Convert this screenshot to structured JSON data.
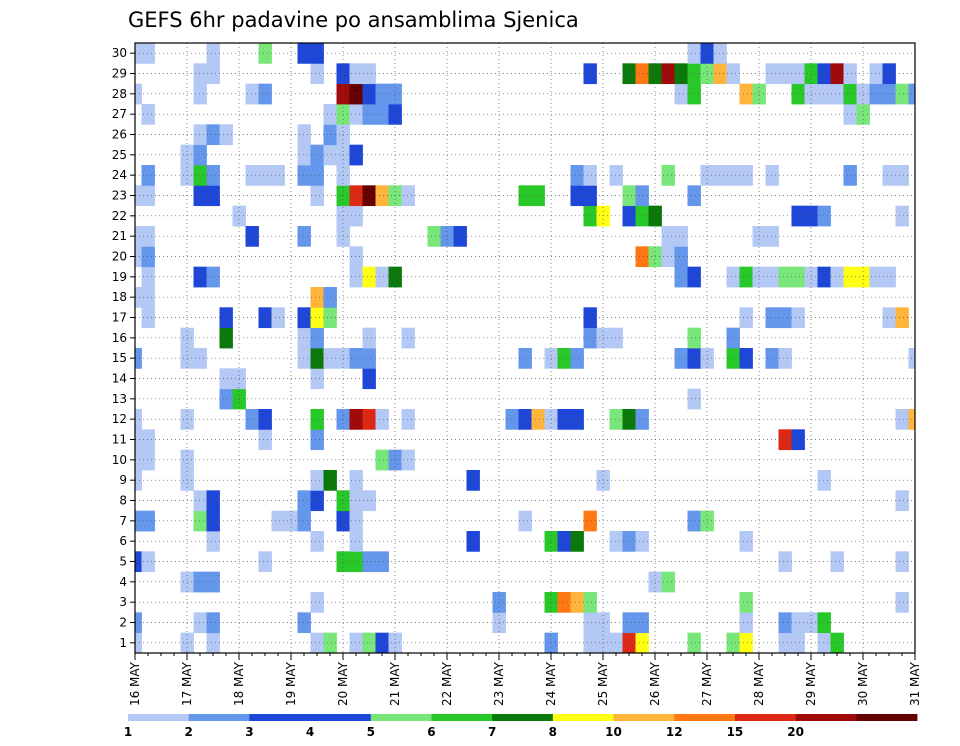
{
  "chart_data": {
    "type": "heatmap",
    "title": "GEFS 6hr padavine po ansamblima Sjenica",
    "xlabel": "",
    "ylabel": "",
    "x_ticks": [
      "16 MAY",
      "17 MAY",
      "18 MAY",
      "19 MAY",
      "20 MAY",
      "21 MAY",
      "22 MAY",
      "23 MAY",
      "24 MAY",
      "25 MAY",
      "26 MAY",
      "27 MAY",
      "28 MAY",
      "29 MAY",
      "30 MAY",
      "31 MAY"
    ],
    "x_steps_per_day": 4,
    "n_steps": 60,
    "members": 30,
    "y_ticks": [
      1,
      2,
      3,
      4,
      5,
      6,
      7,
      8,
      9,
      10,
      11,
      12,
      13,
      14,
      15,
      16,
      17,
      18,
      19,
      20,
      21,
      22,
      23,
      24,
      25,
      26,
      27,
      28,
      29,
      30
    ],
    "grid": true,
    "colorbar": {
      "ticks": [
        "1",
        "2",
        "3",
        "4",
        "5",
        "6",
        "7",
        "8",
        "10",
        "12",
        "15",
        "20"
      ],
      "colors": [
        "#b4c8f5",
        "#6496eb",
        "#1e46d7",
        "#1e46d7",
        "#78e678",
        "#28c828",
        "#0a780a",
        "#ffff14",
        "#ffb43c",
        "#ff7814",
        "#dc2814",
        "#a00a0a",
        "#640000"
      ]
    },
    "level_colors": {
      "1": "#b4c8f5",
      "2": "#6496eb",
      "3": "#1e46d7",
      "4": "#78e678",
      "5": "#28c828",
      "6": "#0a780a",
      "7": "#ffff14",
      "8": "#ffb43c",
      "10": "#ff7814",
      "12": "#dc2814",
      "15": "#a00a0a",
      "20": "#640000"
    },
    "rows": {
      "30": [
        [
          0,
          1
        ],
        [
          1,
          1
        ],
        [
          6,
          1
        ],
        [
          10,
          4
        ],
        [
          13,
          3
        ],
        [
          14,
          3
        ],
        [
          43,
          1
        ],
        [
          44,
          3
        ],
        [
          45,
          1
        ]
      ],
      "29": [
        [
          5,
          1
        ],
        [
          6,
          1
        ],
        [
          14,
          1
        ],
        [
          16,
          3
        ],
        [
          17,
          1
        ],
        [
          18,
          1
        ],
        [
          35,
          3
        ],
        [
          38,
          6
        ],
        [
          39,
          10
        ],
        [
          40,
          6
        ],
        [
          41,
          15
        ],
        [
          42,
          6
        ],
        [
          43,
          5
        ],
        [
          44,
          4
        ],
        [
          45,
          8
        ],
        [
          46,
          1
        ],
        [
          49,
          1
        ],
        [
          50,
          1
        ],
        [
          51,
          1
        ],
        [
          52,
          5
        ],
        [
          53,
          3
        ],
        [
          54,
          15
        ],
        [
          55,
          1
        ],
        [
          57,
          1
        ],
        [
          58,
          3
        ]
      ],
      "28": [
        [
          0,
          1
        ],
        [
          5,
          1
        ],
        [
          9,
          1
        ],
        [
          10,
          2
        ],
        [
          16,
          15
        ],
        [
          17,
          20
        ],
        [
          18,
          3
        ],
        [
          19,
          2
        ],
        [
          20,
          2
        ],
        [
          42,
          1
        ],
        [
          43,
          5
        ],
        [
          47,
          8
        ],
        [
          48,
          4
        ],
        [
          51,
          5
        ],
        [
          52,
          1
        ],
        [
          53,
          1
        ],
        [
          54,
          1
        ],
        [
          55,
          5
        ],
        [
          56,
          1
        ],
        [
          57,
          2
        ],
        [
          58,
          2
        ],
        [
          59,
          4
        ],
        [
          60,
          2
        ]
      ],
      "27": [
        [
          1,
          1
        ],
        [
          15,
          1
        ],
        [
          16,
          4
        ],
        [
          17,
          1
        ],
        [
          18,
          2
        ],
        [
          19,
          2
        ],
        [
          20,
          3
        ],
        [
          55,
          1
        ],
        [
          56,
          4
        ]
      ],
      "26": [
        [
          5,
          1
        ],
        [
          6,
          2
        ],
        [
          7,
          1
        ],
        [
          13,
          1
        ],
        [
          15,
          2
        ],
        [
          16,
          1
        ]
      ],
      "25": [
        [
          4,
          1
        ],
        [
          5,
          2
        ],
        [
          13,
          1
        ],
        [
          14,
          2
        ],
        [
          15,
          1
        ],
        [
          16,
          1
        ],
        [
          17,
          3
        ]
      ],
      "24": [
        [
          1,
          2
        ],
        [
          4,
          1
        ],
        [
          5,
          5
        ],
        [
          6,
          2
        ],
        [
          9,
          1
        ],
        [
          10,
          1
        ],
        [
          11,
          1
        ],
        [
          13,
          2
        ],
        [
          14,
          2
        ],
        [
          16,
          1
        ],
        [
          34,
          2
        ],
        [
          35,
          1
        ],
        [
          37,
          1
        ],
        [
          41,
          4
        ],
        [
          44,
          1
        ],
        [
          45,
          1
        ],
        [
          46,
          1
        ],
        [
          47,
          1
        ],
        [
          49,
          1
        ],
        [
          55,
          2
        ],
        [
          58,
          1
        ],
        [
          59,
          1
        ]
      ],
      "23": [
        [
          0,
          1
        ],
        [
          1,
          1
        ],
        [
          5,
          3
        ],
        [
          6,
          3
        ],
        [
          14,
          1
        ],
        [
          16,
          5
        ],
        [
          17,
          12
        ],
        [
          18,
          20
        ],
        [
          19,
          8
        ],
        [
          20,
          4
        ],
        [
          21,
          1
        ],
        [
          30,
          5
        ],
        [
          31,
          5
        ],
        [
          34,
          3
        ],
        [
          35,
          3
        ],
        [
          38,
          4
        ],
        [
          39,
          2
        ],
        [
          43,
          2
        ]
      ],
      "22": [
        [
          8,
          1
        ],
        [
          16,
          1
        ],
        [
          17,
          1
        ],
        [
          35,
          5
        ],
        [
          36,
          7
        ],
        [
          38,
          3
        ],
        [
          39,
          5
        ],
        [
          40,
          6
        ],
        [
          51,
          3
        ],
        [
          52,
          3
        ],
        [
          53,
          2
        ],
        [
          59,
          1
        ]
      ],
      "21": [
        [
          0,
          1
        ],
        [
          1,
          1
        ],
        [
          9,
          3
        ],
        [
          13,
          2
        ],
        [
          16,
          1
        ],
        [
          23,
          4
        ],
        [
          24,
          2
        ],
        [
          25,
          3
        ],
        [
          41,
          1
        ],
        [
          42,
          1
        ],
        [
          48,
          1
        ],
        [
          49,
          1
        ]
      ],
      "20": [
        [
          0,
          1
        ],
        [
          1,
          2
        ],
        [
          17,
          1
        ],
        [
          39,
          10
        ],
        [
          40,
          4
        ],
        [
          41,
          1
        ],
        [
          42,
          2
        ]
      ],
      "19": [
        [
          1,
          1
        ],
        [
          5,
          3
        ],
        [
          6,
          2
        ],
        [
          17,
          1
        ],
        [
          18,
          7
        ],
        [
          19,
          1
        ],
        [
          20,
          6
        ],
        [
          42,
          2
        ],
        [
          43,
          3
        ],
        [
          46,
          1
        ],
        [
          47,
          5
        ],
        [
          48,
          1
        ],
        [
          49,
          1
        ],
        [
          50,
          4
        ],
        [
          51,
          4
        ],
        [
          52,
          1
        ],
        [
          53,
          3
        ],
        [
          54,
          1
        ],
        [
          55,
          7
        ],
        [
          56,
          7
        ],
        [
          57,
          1
        ],
        [
          58,
          1
        ]
      ],
      "18": [
        [
          0,
          1
        ],
        [
          1,
          1
        ],
        [
          14,
          8
        ],
        [
          15,
          2
        ]
      ],
      "17": [
        [
          1,
          1
        ],
        [
          7,
          3
        ],
        [
          10,
          3
        ],
        [
          11,
          1
        ],
        [
          13,
          3
        ],
        [
          14,
          7
        ],
        [
          15,
          4
        ],
        [
          35,
          3
        ],
        [
          47,
          1
        ],
        [
          49,
          2
        ],
        [
          50,
          2
        ],
        [
          51,
          1
        ],
        [
          58,
          1
        ],
        [
          59,
          8
        ]
      ],
      "16": [
        [
          4,
          1
        ],
        [
          7,
          6
        ],
        [
          13,
          1
        ],
        [
          14,
          2
        ],
        [
          18,
          1
        ],
        [
          21,
          1
        ],
        [
          35,
          2
        ],
        [
          36,
          1
        ],
        [
          37,
          1
        ],
        [
          43,
          4
        ],
        [
          46,
          2
        ]
      ],
      "15": [
        [
          0,
          2
        ],
        [
          4,
          1
        ],
        [
          5,
          1
        ],
        [
          13,
          1
        ],
        [
          14,
          6
        ],
        [
          15,
          1
        ],
        [
          16,
          1
        ],
        [
          17,
          2
        ],
        [
          18,
          2
        ],
        [
          30,
          2
        ],
        [
          32,
          1
        ],
        [
          33,
          5
        ],
        [
          34,
          2
        ],
        [
          42,
          2
        ],
        [
          43,
          3
        ],
        [
          44,
          1
        ],
        [
          46,
          5
        ],
        [
          47,
          3
        ],
        [
          49,
          2
        ],
        [
          50,
          1
        ],
        [
          60,
          1
        ]
      ],
      "14": [
        [
          7,
          1
        ],
        [
          8,
          1
        ],
        [
          14,
          1
        ],
        [
          18,
          3
        ]
      ],
      "13": [
        [
          7,
          2
        ],
        [
          8,
          5
        ],
        [
          43,
          1
        ]
      ],
      "12": [
        [
          0,
          1
        ],
        [
          4,
          1
        ],
        [
          9,
          2
        ],
        [
          10,
          3
        ],
        [
          14,
          5
        ],
        [
          16,
          2
        ],
        [
          17,
          15
        ],
        [
          18,
          12
        ],
        [
          19,
          1
        ],
        [
          21,
          1
        ],
        [
          29,
          2
        ],
        [
          30,
          3
        ],
        [
          31,
          8
        ],
        [
          32,
          1
        ],
        [
          33,
          3
        ],
        [
          34,
          3
        ],
        [
          37,
          4
        ],
        [
          38,
          6
        ],
        [
          39,
          2
        ],
        [
          59,
          1
        ],
        [
          60,
          8
        ]
      ],
      "11": [
        [
          0,
          1
        ],
        [
          1,
          1
        ],
        [
          10,
          1
        ],
        [
          14,
          2
        ],
        [
          50,
          12
        ],
        [
          51,
          3
        ]
      ],
      "10": [
        [
          0,
          1
        ],
        [
          1,
          1
        ],
        [
          4,
          1
        ],
        [
          19,
          4
        ],
        [
          20,
          2
        ],
        [
          21,
          1
        ]
      ],
      "9": [
        [
          0,
          1
        ],
        [
          4,
          1
        ],
        [
          14,
          1
        ],
        [
          15,
          6
        ],
        [
          17,
          1
        ],
        [
          26,
          3
        ],
        [
          36,
          1
        ],
        [
          53,
          1
        ]
      ],
      "8": [
        [
          5,
          1
        ],
        [
          6,
          3
        ],
        [
          13,
          2
        ],
        [
          14,
          3
        ],
        [
          16,
          5
        ],
        [
          17,
          1
        ],
        [
          18,
          1
        ],
        [
          59,
          1
        ]
      ],
      "7": [
        [
          0,
          2
        ],
        [
          1,
          2
        ],
        [
          5,
          4
        ],
        [
          6,
          3
        ],
        [
          11,
          1
        ],
        [
          12,
          1
        ],
        [
          13,
          2
        ],
        [
          16,
          3
        ],
        [
          17,
          1
        ],
        [
          30,
          1
        ],
        [
          35,
          10
        ],
        [
          43,
          2
        ],
        [
          44,
          4
        ]
      ],
      "6": [
        [
          6,
          1
        ],
        [
          14,
          1
        ],
        [
          17,
          1
        ],
        [
          26,
          3
        ],
        [
          32,
          5
        ],
        [
          33,
          3
        ],
        [
          34,
          6
        ],
        [
          37,
          1
        ],
        [
          38,
          2
        ],
        [
          39,
          1
        ],
        [
          47,
          1
        ]
      ],
      "5": [
        [
          0,
          3
        ],
        [
          1,
          1
        ],
        [
          10,
          1
        ],
        [
          16,
          5
        ],
        [
          17,
          5
        ],
        [
          18,
          2
        ],
        [
          19,
          2
        ],
        [
          50,
          1
        ],
        [
          54,
          1
        ],
        [
          59,
          1
        ]
      ],
      "4": [
        [
          4,
          1
        ],
        [
          5,
          2
        ],
        [
          6,
          2
        ],
        [
          40,
          1
        ],
        [
          41,
          4
        ]
      ],
      "3": [
        [
          14,
          1
        ],
        [
          28,
          2
        ],
        [
          32,
          5
        ],
        [
          33,
          10
        ],
        [
          34,
          8
        ],
        [
          35,
          4
        ],
        [
          47,
          4
        ],
        [
          59,
          1
        ]
      ],
      "2": [
        [
          0,
          2
        ],
        [
          5,
          1
        ],
        [
          6,
          2
        ],
        [
          13,
          2
        ],
        [
          28,
          1
        ],
        [
          35,
          1
        ],
        [
          36,
          1
        ],
        [
          38,
          2
        ],
        [
          39,
          2
        ],
        [
          47,
          1
        ],
        [
          50,
          2
        ],
        [
          51,
          1
        ],
        [
          52,
          1
        ],
        [
          53,
          5
        ]
      ],
      "1": [
        [
          0,
          1
        ],
        [
          4,
          1
        ],
        [
          6,
          1
        ],
        [
          14,
          1
        ],
        [
          15,
          4
        ],
        [
          17,
          1
        ],
        [
          18,
          4
        ],
        [
          19,
          3
        ],
        [
          20,
          1
        ],
        [
          32,
          2
        ],
        [
          35,
          1
        ],
        [
          36,
          1
        ],
        [
          37,
          1
        ],
        [
          38,
          12
        ],
        [
          39,
          7
        ],
        [
          43,
          4
        ],
        [
          46,
          4
        ],
        [
          47,
          7
        ],
        [
          50,
          1
        ],
        [
          51,
          1
        ],
        [
          53,
          1
        ],
        [
          54,
          5
        ]
      ]
    }
  }
}
